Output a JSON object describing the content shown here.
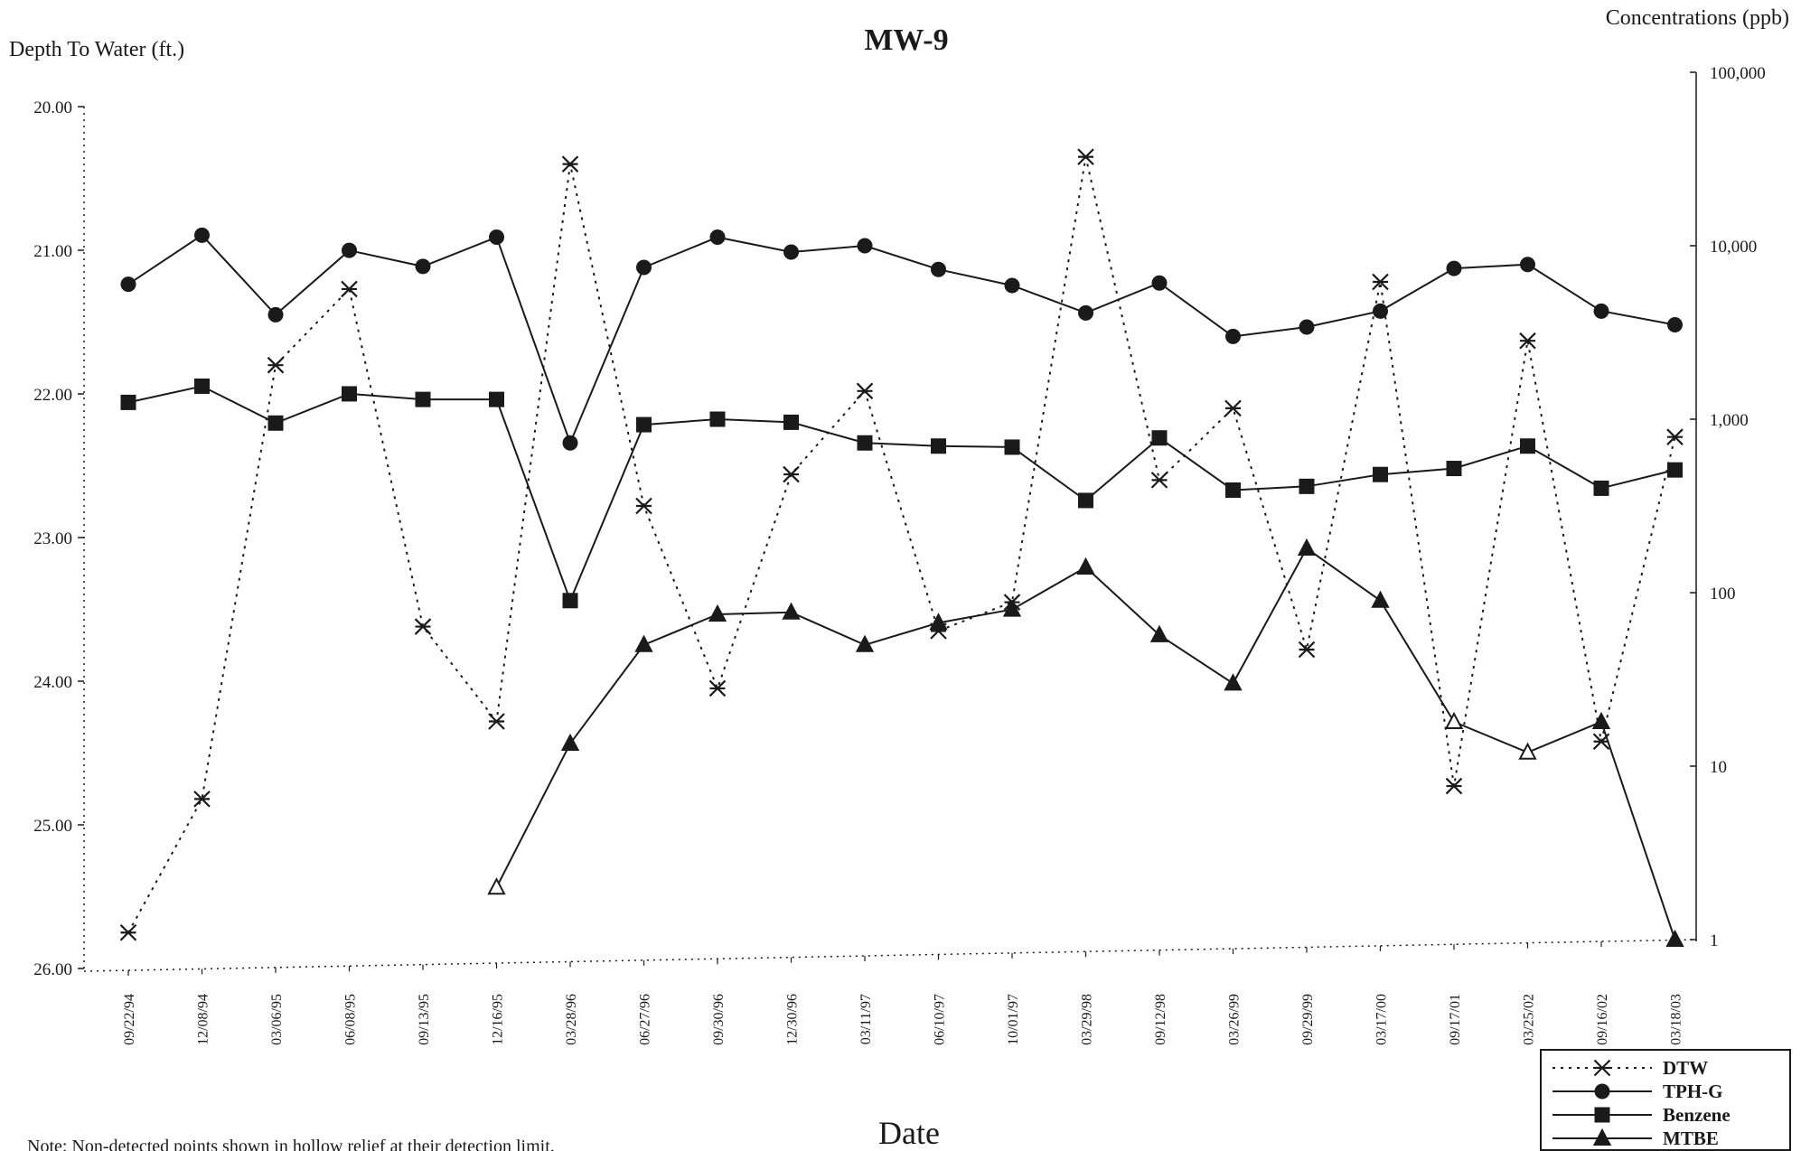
{
  "chart_data": {
    "type": "line",
    "title": "MW-9",
    "left_axis_label": "Depth To Water (ft.)",
    "right_axis_label": "Concentrations (ppb)",
    "xlabel": "Date",
    "note": "Note: Non-detected points shown in hollow relief at their detection limit.",
    "left_ylim": [
      20.0,
      26.0
    ],
    "left_axis_inverted": true,
    "left_ticks": [
      "20.00",
      "21.00",
      "22.00",
      "23.00",
      "24.00",
      "25.00",
      "26.00"
    ],
    "right_yscale": "log",
    "right_ylim": [
      1,
      100000
    ],
    "right_ticks": [
      "100,000",
      "10,000",
      "1,000",
      "100",
      "10",
      "1"
    ],
    "categories": [
      "09/22/94",
      "12/08/94",
      "03/06/95",
      "06/08/95",
      "09/13/95",
      "12/16/95",
      "03/28/96",
      "06/27/96",
      "09/30/96",
      "12/30/96",
      "03/11/97",
      "06/10/97",
      "10/01/97",
      "03/29/98",
      "09/12/98",
      "03/26/99",
      "09/29/99",
      "03/17/00",
      "09/17/01",
      "03/25/02",
      "09/16/02",
      "03/18/03"
    ],
    "grid": false,
    "legend_position": "bottom-right",
    "series": [
      {
        "name": "DTW",
        "axis": "left",
        "style": "dotted",
        "marker": "asterisk",
        "values": [
          25.75,
          24.82,
          21.8,
          21.27,
          23.62,
          24.28,
          20.4,
          22.78,
          24.05,
          22.56,
          21.98,
          23.65,
          23.45,
          20.35,
          22.6,
          22.1,
          23.78,
          21.22,
          24.73,
          21.63,
          24.42,
          22.3
        ],
        "hollow": [
          false,
          false,
          false,
          false,
          false,
          false,
          false,
          false,
          false,
          false,
          false,
          false,
          false,
          false,
          false,
          false,
          false,
          false,
          false,
          false,
          false,
          false
        ]
      },
      {
        "name": "TPH-G",
        "axis": "right",
        "style": "solid",
        "marker": "circle",
        "values": [
          6000,
          11500,
          4000,
          9400,
          7600,
          11200,
          730,
          7500,
          11200,
          9200,
          10000,
          7300,
          5900,
          4100,
          6100,
          3000,
          3400,
          4200,
          7400,
          7800,
          4200,
          3500
        ],
        "hollow": [
          false,
          false,
          false,
          false,
          false,
          false,
          false,
          false,
          false,
          false,
          false,
          false,
          false,
          false,
          false,
          false,
          false,
          false,
          false,
          false,
          false,
          false
        ]
      },
      {
        "name": "Benzene",
        "axis": "right",
        "style": "solid",
        "marker": "square",
        "values": [
          1250,
          1550,
          950,
          1400,
          1300,
          1300,
          90,
          930,
          1000,
          960,
          730,
          700,
          690,
          340,
          780,
          390,
          410,
          480,
          520,
          700,
          400,
          510
        ],
        "hollow": [
          false,
          false,
          false,
          false,
          false,
          false,
          false,
          false,
          false,
          false,
          false,
          false,
          false,
          false,
          false,
          false,
          false,
          false,
          false,
          false,
          false,
          false
        ]
      },
      {
        "name": "MTBE",
        "axis": "right",
        "style": "solid",
        "marker": "triangle",
        "values": [
          null,
          null,
          null,
          null,
          null,
          2,
          13.5,
          50,
          75,
          77,
          50,
          67,
          80,
          140,
          57,
          30,
          180,
          90,
          18,
          12,
          18,
          1
        ],
        "hollow": [
          false,
          false,
          false,
          false,
          false,
          true,
          false,
          false,
          false,
          false,
          false,
          false,
          false,
          false,
          false,
          false,
          false,
          false,
          true,
          true,
          false,
          false
        ]
      }
    ]
  },
  "colors": {
    "ink": "#1a1a1a",
    "background": "#ffffff"
  }
}
